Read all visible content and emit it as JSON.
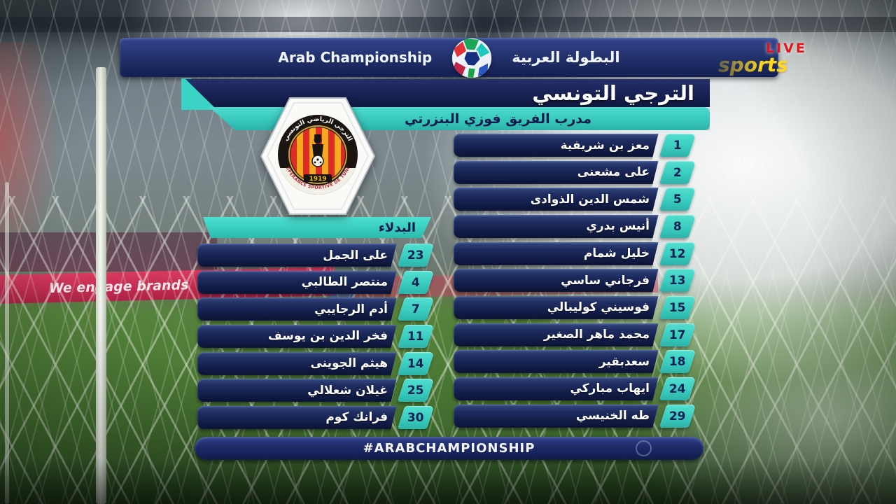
{
  "broadcast": {
    "live_label": "LIVE",
    "channel_label": "sports"
  },
  "header": {
    "competition_en": "Arab Championship",
    "competition_ar": "البطولة العربية",
    "logo_icon": "arab-championship-ball-icon"
  },
  "team_panel": {
    "team_name": "الترجي التونسي",
    "coach_line": "مدرب الفريق فوزي البنزرتي",
    "badge": {
      "club_arc_ar": "الترجي الرياضي التونسي",
      "club_arc_en": "ESPERANCE SPORTIVE DE TUNIS",
      "year": "1919"
    }
  },
  "starting_lineup": [
    {
      "number": "1",
      "name": "معز بن شريفية"
    },
    {
      "number": "2",
      "name": "على مشعنى"
    },
    {
      "number": "5",
      "name": "شمس الدين الذوادى"
    },
    {
      "number": "8",
      "name": "أنيس بدري"
    },
    {
      "number": "12",
      "name": "خليل شمام"
    },
    {
      "number": "13",
      "name": "فرجاني ساسي"
    },
    {
      "number": "15",
      "name": "فوسيني كوليبالي"
    },
    {
      "number": "17",
      "name": "محمد ماهر الصغير"
    },
    {
      "number": "18",
      "name": "سعدبقير"
    },
    {
      "number": "24",
      "name": "ايهاب مباركي"
    },
    {
      "number": "29",
      "name": "طه الخنيسي"
    }
  ],
  "substitutes": {
    "header": "البدلاء",
    "players": [
      {
        "number": "23",
        "name": "على الجمل"
      },
      {
        "number": "4",
        "name": "منتصر الطالبي"
      },
      {
        "number": "7",
        "name": "أدم الرجايبي"
      },
      {
        "number": "11",
        "name": "فخر الدين بن يوسف"
      },
      {
        "number": "14",
        "name": "هيثم الجوينى"
      },
      {
        "number": "25",
        "name": "غيلان شعلالي"
      },
      {
        "number": "30",
        "name": "فرانك كوم"
      }
    ]
  },
  "footer": {
    "hashtag": "#ARABCHAMPIONSHIP"
  },
  "background": {
    "ad_board_text": "We engage brands"
  },
  "colors": {
    "teal_accent": "#3bd3c6",
    "panel_navy": "#16224f",
    "live_red": "#e31318",
    "channel_yellow": "#ffd91e",
    "ad_board_crimson": "#c22a4e"
  }
}
